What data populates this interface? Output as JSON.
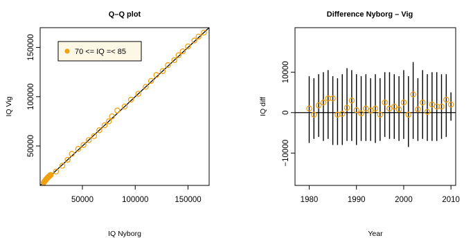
{
  "colors": {
    "points": "#f0a10e",
    "line": "#000000",
    "legend_bg": "#fdf7e6"
  },
  "chart_data": [
    {
      "type": "scatter",
      "title": "Q–Q plot",
      "xlabel": "IQ Nyborg",
      "ylabel": "IQ Vig",
      "xlim": [
        10000,
        170000
      ],
      "ylim": [
        10000,
        170000
      ],
      "x_ticks": [
        50000,
        100000,
        150000
      ],
      "x_tick_labels": [
        "50000",
        "100000",
        "150000"
      ],
      "y_ticks": [
        50000,
        100000,
        150000
      ],
      "y_tick_labels": [
        "50000",
        "100000",
        "150000"
      ],
      "legend": {
        "label": "70 <= IQ =< 85",
        "position": "top-left"
      },
      "reference_line": {
        "slope": 1,
        "intercept": 0
      },
      "series": [
        {
          "name": "70 <= IQ =< 85",
          "x": [
            13500,
            14000,
            14500,
            15000,
            15500,
            16000,
            16500,
            17000,
            17500,
            18000,
            18500,
            19000,
            19500,
            20000,
            25000,
            31000,
            36000,
            40000,
            46000,
            51000,
            56000,
            61000,
            66000,
            71000,
            75000,
            78000,
            83000,
            90000,
            96000,
            103000,
            110000,
            115000,
            120000,
            126000,
            131000,
            137000,
            141000,
            145000,
            150000,
            156000,
            160000,
            165000
          ],
          "y": [
            13000,
            13700,
            14500,
            15200,
            16000,
            16500,
            17200,
            17800,
            18300,
            18800,
            19400,
            19800,
            20300,
            20600,
            24000,
            30000,
            36000,
            42000,
            47000,
            51000,
            56000,
            60000,
            66000,
            71000,
            75000,
            80000,
            86000,
            90000,
            97000,
            103000,
            110000,
            116000,
            122000,
            126000,
            132000,
            137000,
            142000,
            146000,
            151000,
            157000,
            161000,
            165000
          ]
        }
      ],
      "grid": false
    },
    {
      "type": "scatter",
      "title": "Difference Nyborg – Vig",
      "xlabel": "Year",
      "ylabel": "IQ diff",
      "xlim": [
        1977,
        2011
      ],
      "ylim": [
        -18000,
        21000
      ],
      "x_ticks": [
        1980,
        1990,
        2000,
        2010
      ],
      "x_tick_labels": [
        "1980",
        "1990",
        "2000",
        "2010"
      ],
      "y_ticks": [
        -10000,
        0,
        10000
      ],
      "y_tick_labels": [
        "−10000",
        "0",
        "10000"
      ],
      "horizontal_line": 0,
      "series": [
        {
          "name": "",
          "x": [
            1980,
            1981,
            1982,
            1983,
            1984,
            1985,
            1986,
            1987,
            1988,
            1989,
            1990,
            1991,
            1992,
            1993,
            1994,
            1995,
            1996,
            1997,
            1998,
            1999,
            2000,
            2001,
            2002,
            2003,
            2004,
            2005,
            2006,
            2007,
            2008,
            2009,
            2010
          ],
          "y": [
            1000,
            -500,
            1800,
            2500,
            3500,
            3500,
            -500,
            -300,
            1200,
            3000,
            600,
            -200,
            1000,
            500,
            1000,
            -500,
            2500,
            1000,
            1500,
            800,
            2500,
            -500,
            4500,
            800,
            2500,
            200,
            2000,
            1500,
            1500,
            3200,
            2000
          ],
          "err_low": [
            -7500,
            -6500,
            -6000,
            -7000,
            -6500,
            -8000,
            -8000,
            -8000,
            -7000,
            -7000,
            -8000,
            -7000,
            -7000,
            -7000,
            -7500,
            -7000,
            -6000,
            -6500,
            -6500,
            -7000,
            -6500,
            -8500,
            -6500,
            -7000,
            -6500,
            -7000,
            -7000,
            -7000,
            -6500,
            -6000,
            -2000
          ],
          "err_high": [
            9000,
            8500,
            9500,
            10000,
            10500,
            9000,
            8500,
            9500,
            11000,
            10500,
            9500,
            9000,
            9500,
            8500,
            9500,
            8500,
            10000,
            10000,
            9500,
            9000,
            10500,
            9000,
            12500,
            8500,
            10500,
            9500,
            10000,
            10000,
            9500,
            9500,
            5000
          ]
        }
      ],
      "grid": false
    }
  ]
}
